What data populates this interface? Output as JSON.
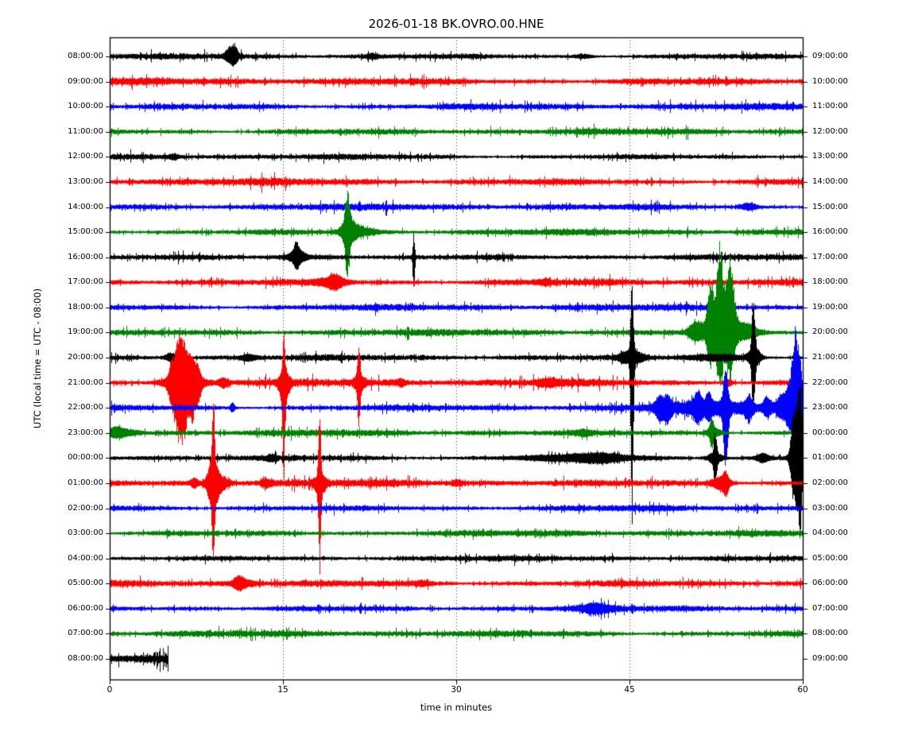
{
  "title": "2026-01-18 BK.OVRO.00.HNE",
  "xlabel": "time in minutes",
  "ylabel": "UTC (local time = UTC - 08:00)",
  "chart_data": {
    "type": "line",
    "subtype": "seismogram-dayplot",
    "station": "BK.OVRO.00.HNE",
    "date": "2026-01-18",
    "x_axis": {
      "label": "time in minutes",
      "ticks": [
        0,
        15,
        30,
        45,
        60
      ],
      "range": [
        0,
        60
      ],
      "grid_minutes": [
        15,
        30,
        45
      ],
      "grid_style": "dotted"
    },
    "colors": {
      "black": "#000000",
      "red": "#ff0000",
      "blue": "#0000ff",
      "green": "#008000"
    },
    "legend": "none",
    "rows_note": "25 hourly traces; left label = UTC start of row, right label = UTC end of row; events = [center_minute, sigma_minutes, up_px, down_px] burst envelopes read from the plot",
    "rows": [
      {
        "left_label": "08:00:00",
        "right_label": "09:00:00",
        "color": "#000000",
        "noise": 2.7,
        "end_min": 60,
        "events": [
          [
            10.45,
            0.35,
            11,
            8
          ],
          [
            10.85,
            0.18,
            7,
            5
          ],
          [
            22.7,
            0.4,
            2,
            2
          ],
          [
            41,
            0.6,
            2,
            2
          ]
        ]
      },
      {
        "left_label": "09:00:00",
        "right_label": "10:00:00",
        "color": "#ff0000",
        "noise": 3.4,
        "end_min": 60,
        "events": []
      },
      {
        "left_label": "10:00:00",
        "right_label": "11:00:00",
        "color": "#0000ff",
        "noise": 3.1,
        "end_min": 60,
        "events": []
      },
      {
        "left_label": "11:00:00",
        "right_label": "12:00:00",
        "color": "#008000",
        "noise": 3.0,
        "end_min": 60,
        "events": []
      },
      {
        "left_label": "12:00:00",
        "right_label": "13:00:00",
        "color": "#000000",
        "noise": 2.7,
        "end_min": 60,
        "events": [
          [
            5.5,
            0.3,
            2.5,
            2.5
          ]
        ]
      },
      {
        "left_label": "13:00:00",
        "right_label": "14:00:00",
        "color": "#ff0000",
        "noise": 3.4,
        "end_min": 60,
        "events": []
      },
      {
        "left_label": "14:00:00",
        "right_label": "15:00:00",
        "color": "#0000ff",
        "noise": 3.1,
        "end_min": 60,
        "events": [
          [
            55.3,
            0.5,
            4,
            3
          ]
        ]
      },
      {
        "left_label": "15:00:00",
        "right_label": "16:00:00",
        "color": "#008000",
        "noise": 3.0,
        "end_min": 60,
        "events": [
          [
            20.55,
            0.17,
            38,
            42
          ],
          [
            20.7,
            0.5,
            14,
            12
          ],
          [
            21.8,
            1.0,
            4,
            3
          ]
        ]
      },
      {
        "left_label": "16:00:00",
        "right_label": "17:00:00",
        "color": "#000000",
        "noise": 2.7,
        "end_min": 60,
        "events": [
          [
            16.2,
            0.5,
            8,
            7
          ],
          [
            16.15,
            0.15,
            13,
            10
          ],
          [
            18,
            2.2,
            1.5,
            1.5
          ],
          [
            26.3,
            0.07,
            29,
            46
          ]
        ]
      },
      {
        "left_label": "17:00:00",
        "right_label": "18:00:00",
        "color": "#ff0000",
        "noise": 3.4,
        "end_min": 60,
        "events": [
          [
            19.2,
            1.1,
            4,
            4
          ],
          [
            19.5,
            0.4,
            6,
            5
          ],
          [
            37.7,
            0.35,
            3,
            3
          ]
        ]
      },
      {
        "left_label": "18:00:00",
        "right_label": "19:00:00",
        "color": "#0000ff",
        "noise": 3.1,
        "end_min": 60,
        "events": []
      },
      {
        "left_label": "19:00:00",
        "right_label": "20:00:00",
        "color": "#008000",
        "noise": 3.0,
        "end_min": 60,
        "events": [
          [
            50.7,
            0.4,
            11,
            8
          ],
          [
            52.0,
            0.22,
            55,
            35
          ],
          [
            52.8,
            0.25,
            95,
            60
          ],
          [
            53.7,
            0.28,
            80,
            50
          ],
          [
            53.0,
            1.2,
            18,
            13
          ],
          [
            55.2,
            0.7,
            7,
            5
          ]
        ]
      },
      {
        "left_label": "20:00:00",
        "right_label": "21:00:00",
        "color": "#000000",
        "noise": 2.7,
        "end_min": 60,
        "events": [
          [
            5.3,
            0.4,
            5,
            4
          ],
          [
            12,
            0.5,
            3,
            3
          ],
          [
            45.2,
            0.1,
            96,
            205
          ],
          [
            45.2,
            0.7,
            8,
            8
          ],
          [
            52.5,
            2.0,
            3.5,
            3.5
          ],
          [
            55.7,
            0.12,
            68,
            58
          ],
          [
            55.8,
            0.4,
            12,
            10
          ]
        ]
      },
      {
        "left_label": "21:00:00",
        "right_label": "22:00:00",
        "color": "#ff0000",
        "noise": 3.5,
        "end_min": 60,
        "events": [
          [
            5.35,
            0.22,
            18,
            22
          ],
          [
            5.95,
            0.28,
            46,
            62
          ],
          [
            6.45,
            0.22,
            30,
            44
          ],
          [
            7.1,
            0.28,
            28,
            38
          ],
          [
            7.65,
            0.18,
            12,
            16
          ],
          [
            6.4,
            1.1,
            11,
            13
          ],
          [
            9.8,
            0.3,
            5,
            5
          ],
          [
            15.05,
            0.09,
            56,
            96
          ],
          [
            15.1,
            0.3,
            13,
            28
          ],
          [
            21.55,
            0.1,
            38,
            46
          ],
          [
            21.6,
            0.35,
            8,
            10
          ],
          [
            25.2,
            0.3,
            3,
            3
          ],
          [
            38,
            0.8,
            3.5,
            3.5
          ],
          [
            53.5,
            0.3,
            4,
            4
          ]
        ]
      },
      {
        "left_label": "22:00:00",
        "right_label": "23:00:00",
        "color": "#0000ff",
        "noise": 3.1,
        "end_min": 60,
        "events": [
          [
            10.6,
            0.14,
            6,
            5
          ],
          [
            47.6,
            0.3,
            12,
            14
          ],
          [
            48.3,
            0.25,
            10,
            12
          ],
          [
            52,
            3.0,
            6,
            7
          ],
          [
            50.9,
            0.25,
            16,
            14
          ],
          [
            51.8,
            0.2,
            12,
            10
          ],
          [
            53.3,
            0.18,
            45,
            68
          ],
          [
            55.3,
            0.3,
            10,
            12
          ],
          [
            56.9,
            0.25,
            12,
            10
          ],
          [
            58.0,
            0.3,
            10,
            9
          ],
          [
            58.8,
            0.4,
            25,
            22
          ],
          [
            59.35,
            0.25,
            90,
            50
          ],
          [
            59.8,
            0.2,
            40,
            30
          ]
        ]
      },
      {
        "left_label": "23:00:00",
        "right_label": "00:00:00",
        "color": "#008000",
        "noise": 3.0,
        "end_min": 60,
        "events": [
          [
            0.6,
            0.5,
            5,
            4
          ],
          [
            1.3,
            1.0,
            3,
            2.5
          ],
          [
            52.1,
            0.14,
            16,
            18
          ],
          [
            52.3,
            0.55,
            5,
            4
          ],
          [
            41,
            0.4,
            2.5,
            2.5
          ]
        ]
      },
      {
        "left_label": "00:00:00",
        "right_label": "01:00:00",
        "color": "#000000",
        "noise": 2.7,
        "end_min": 60,
        "events": [
          [
            14,
            0.3,
            3,
            3
          ],
          [
            40,
            4.0,
            2.5,
            2.5
          ],
          [
            42.5,
            1.4,
            3.5,
            3.5
          ],
          [
            52.4,
            0.11,
            28,
            34
          ],
          [
            52.4,
            0.5,
            6,
            6
          ],
          [
            56.5,
            0.4,
            5,
            5
          ],
          [
            59.2,
            0.2,
            32,
            30
          ],
          [
            59.5,
            0.35,
            48,
            42
          ],
          [
            59.75,
            0.15,
            70,
            68
          ]
        ]
      },
      {
        "left_label": "01:00:00",
        "right_label": "02:00:00",
        "color": "#ff0000",
        "noise": 3.5,
        "end_min": 60,
        "events": [
          [
            7.3,
            0.25,
            5,
            5
          ],
          [
            8.95,
            0.09,
            78,
            60
          ],
          [
            8.9,
            0.3,
            26,
            30
          ],
          [
            9.3,
            0.6,
            10,
            12
          ],
          [
            13.5,
            0.3,
            4,
            4
          ],
          [
            18.15,
            0.09,
            92,
            100
          ],
          [
            18.2,
            0.35,
            10,
            14
          ],
          [
            30,
            0.3,
            2.5,
            2.5
          ],
          [
            52.9,
            0.6,
            7,
            8
          ],
          [
            53.3,
            0.18,
            10,
            12
          ]
        ]
      },
      {
        "left_label": "02:00:00",
        "right_label": "03:00:00",
        "color": "#0000ff",
        "noise": 3.0,
        "end_min": 60,
        "events": []
      },
      {
        "left_label": "03:00:00",
        "right_label": "04:00:00",
        "color": "#008000",
        "noise": 3.0,
        "end_min": 60,
        "events": []
      },
      {
        "left_label": "04:00:00",
        "right_label": "05:00:00",
        "color": "#000000",
        "noise": 2.6,
        "end_min": 60,
        "events": []
      },
      {
        "left_label": "05:00:00",
        "right_label": "06:00:00",
        "color": "#ff0000",
        "noise": 3.4,
        "end_min": 60,
        "events": [
          [
            11.15,
            0.3,
            5,
            5
          ],
          [
            11.5,
            0.7,
            4,
            4
          ],
          [
            27,
            0.4,
            2,
            2
          ]
        ]
      },
      {
        "left_label": "06:00:00",
        "right_label": "07:00:00",
        "color": "#0000ff",
        "noise": 3.0,
        "end_min": 60,
        "events": [
          [
            42,
            0.9,
            4.5,
            4.5
          ]
        ]
      },
      {
        "left_label": "07:00:00",
        "right_label": "08:00:00",
        "color": "#008000",
        "noise": 3.1,
        "end_min": 60,
        "events": []
      },
      {
        "left_label": "08:00:00",
        "right_label": "09:00:00",
        "color": "#000000",
        "noise": 4.8,
        "end_min": 5.05,
        "events": []
      }
    ]
  }
}
